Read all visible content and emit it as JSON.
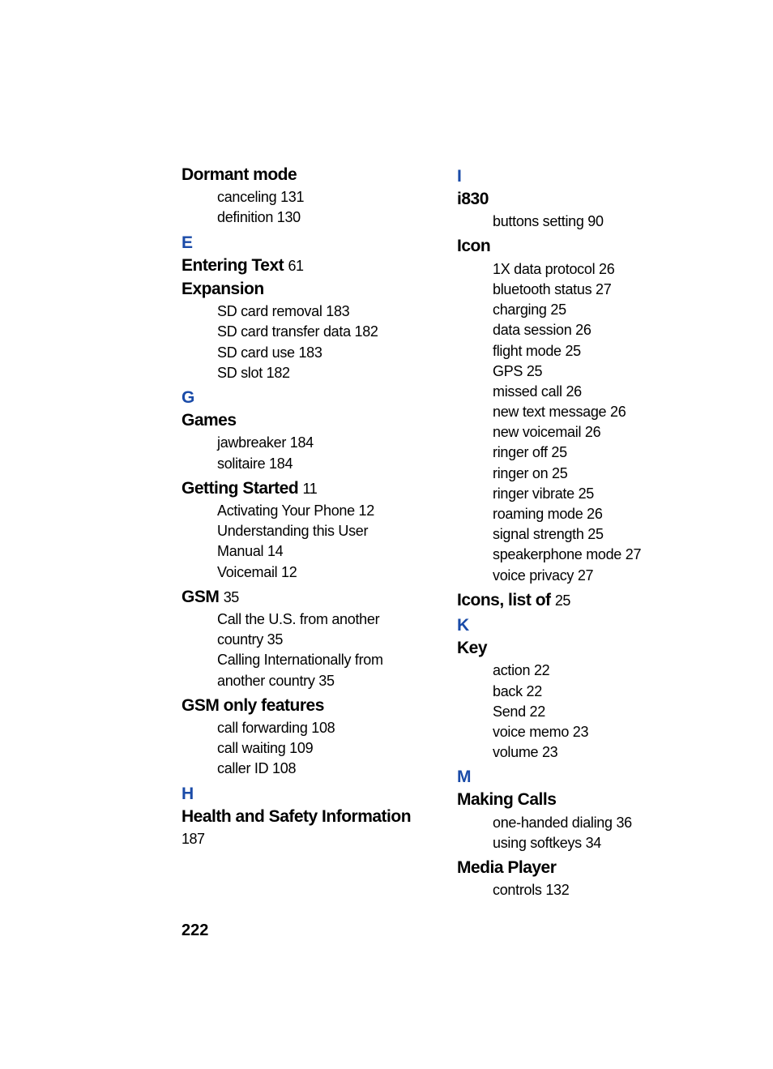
{
  "page_number": "222",
  "colors": {
    "letter_heading": "#1a4ba8",
    "text": "#000000",
    "background": "#ffffff"
  },
  "typography": {
    "letter_fontsize": 21,
    "heading_fontsize": 21,
    "sub_fontsize": 18,
    "page_fontsize": 20
  },
  "left_column": [
    {
      "type": "heading",
      "text": "Dormant mode",
      "subs": [
        {
          "text": "canceling",
          "page": "131"
        },
        {
          "text": "definition",
          "page": "130"
        }
      ]
    },
    {
      "type": "letter",
      "text": "E"
    },
    {
      "type": "heading",
      "text": "Entering Text",
      "page": "61",
      "subs": []
    },
    {
      "type": "heading",
      "text": "Expansion",
      "subs": [
        {
          "text": "SD card removal",
          "page": "183"
        },
        {
          "text": "SD card transfer data",
          "page": "182"
        },
        {
          "text": "SD card use",
          "page": "183"
        },
        {
          "text": "SD slot",
          "page": "182"
        }
      ]
    },
    {
      "type": "letter",
      "text": "G"
    },
    {
      "type": "heading",
      "text": "Games",
      "subs": [
        {
          "text": "jawbreaker",
          "page": "184"
        },
        {
          "text": "solitaire",
          "page": "184"
        }
      ]
    },
    {
      "type": "heading",
      "text": "Getting Started",
      "page": "11",
      "subs": [
        {
          "text": "Activating Your Phone",
          "page": "12"
        },
        {
          "text": "Understanding this User Manual",
          "page": "14"
        },
        {
          "text": "Voicemail",
          "page": "12"
        }
      ]
    },
    {
      "type": "heading",
      "text": "GSM",
      "page": "35",
      "subs": [
        {
          "text": "Call the U.S. from another country",
          "page": "35"
        },
        {
          "text": "Calling Internationally from another country",
          "page": "35"
        }
      ]
    },
    {
      "type": "heading",
      "text": "GSM only features",
      "subs": [
        {
          "text": "call forwarding",
          "page": "108"
        },
        {
          "text": "call waiting",
          "page": "109"
        },
        {
          "text": "caller ID",
          "page": "108"
        }
      ]
    },
    {
      "type": "letter",
      "text": "H"
    },
    {
      "type": "heading",
      "text": "Health and Safety Information",
      "page": "187",
      "subs": []
    }
  ],
  "right_column": [
    {
      "type": "letter",
      "text": "I"
    },
    {
      "type": "heading",
      "text": "i830",
      "subs": [
        {
          "text": "buttons setting",
          "page": "90"
        }
      ]
    },
    {
      "type": "heading",
      "text": "Icon",
      "subs": [
        {
          "text": "1X data protocol",
          "page": "26"
        },
        {
          "text": "bluetooth status",
          "page": "27"
        },
        {
          "text": "charging",
          "page": "25"
        },
        {
          "text": "data session",
          "page": "26"
        },
        {
          "text": "flight mode",
          "page": "25"
        },
        {
          "text": "GPS",
          "page": "25"
        },
        {
          "text": "missed call",
          "page": "26"
        },
        {
          "text": "new text message",
          "page": "26"
        },
        {
          "text": "new voicemail",
          "page": "26"
        },
        {
          "text": "ringer off",
          "page": "25"
        },
        {
          "text": "ringer on",
          "page": "25"
        },
        {
          "text": "ringer vibrate",
          "page": "25"
        },
        {
          "text": "roaming mode",
          "page": "26"
        },
        {
          "text": "signal strength",
          "page": "25"
        },
        {
          "text": "speakerphone mode",
          "page": "27"
        },
        {
          "text": "voice privacy",
          "page": "27"
        }
      ]
    },
    {
      "type": "heading",
      "text": "Icons, list of",
      "page": "25",
      "subs": []
    },
    {
      "type": "letter",
      "text": "K"
    },
    {
      "type": "heading",
      "text": "Key",
      "subs": [
        {
          "text": "action",
          "page": "22"
        },
        {
          "text": "back",
          "page": "22"
        },
        {
          "text": "Send",
          "page": "22"
        },
        {
          "text": "voice memo",
          "page": "23"
        },
        {
          "text": "volume",
          "page": "23"
        }
      ]
    },
    {
      "type": "letter",
      "text": "M"
    },
    {
      "type": "heading",
      "text": "Making Calls",
      "subs": [
        {
          "text": "one-handed dialing",
          "page": "36"
        },
        {
          "text": "using softkeys",
          "page": "34"
        }
      ]
    },
    {
      "type": "heading",
      "text": "Media Player",
      "subs": [
        {
          "text": "controls",
          "page": "132"
        }
      ]
    }
  ]
}
